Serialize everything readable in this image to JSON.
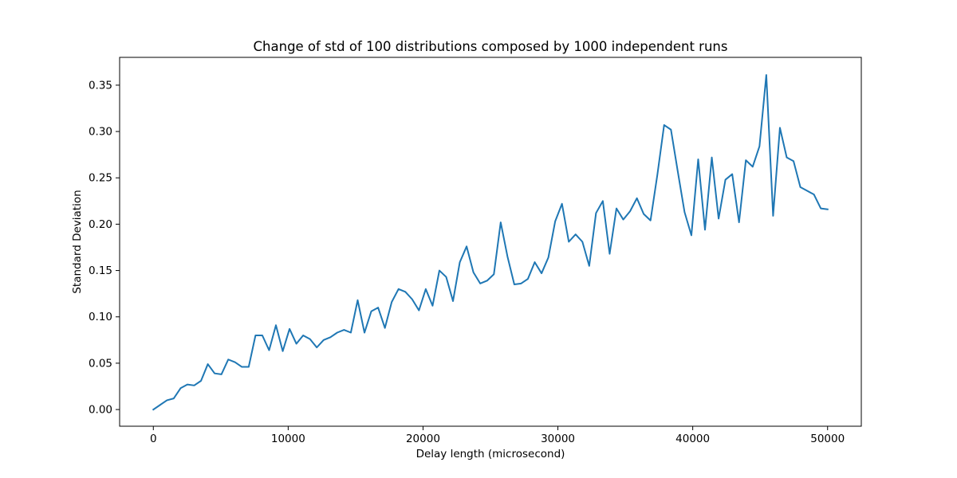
{
  "chart_data": {
    "type": "line",
    "title": "Change of std of 100 distributions composed by 1000 independent runs",
    "xlabel": "Delay length (microsecond)",
    "ylabel": "Standard Deviation",
    "xlim": [
      -2500,
      52500
    ],
    "ylim": [
      -0.018,
      0.38
    ],
    "xticks": [
      0,
      10000,
      20000,
      30000,
      40000,
      50000
    ],
    "xtick_labels": [
      "0",
      "10000",
      "20000",
      "30000",
      "40000",
      "50000"
    ],
    "yticks": [
      0.0,
      0.05,
      0.1,
      0.15,
      0.2,
      0.25,
      0.3,
      0.35
    ],
    "ytick_labels": [
      "0.00",
      "0.05",
      "0.10",
      "0.15",
      "0.20",
      "0.25",
      "0.30",
      "0.35"
    ],
    "grid": false,
    "legend": "none",
    "series": [
      {
        "color": "#1f77b4",
        "x": [
          0,
          505,
          1010,
          1515,
          2020,
          2525,
          3030,
          3535,
          4040,
          4545,
          5051,
          5556,
          6061,
          6566,
          7071,
          7576,
          8081,
          8586,
          9091,
          9596,
          10101,
          10606,
          11111,
          11616,
          12121,
          12626,
          13131,
          13636,
          14141,
          14646,
          15152,
          15657,
          16162,
          16667,
          17172,
          17677,
          18182,
          18687,
          19192,
          19697,
          20202,
          20707,
          21212,
          21717,
          22222,
          22727,
          23232,
          23737,
          24242,
          24747,
          25253,
          25758,
          26263,
          26768,
          27273,
          27778,
          28283,
          28788,
          29293,
          29798,
          30303,
          30808,
          31313,
          31818,
          32323,
          32828,
          33333,
          33838,
          34343,
          34848,
          35354,
          35859,
          36364,
          36869,
          37374,
          37879,
          38384,
          38889,
          39394,
          39899,
          40404,
          40909,
          41414,
          41919,
          42424,
          42929,
          43434,
          43939,
          44444,
          44949,
          45455,
          45960,
          46465,
          46970,
          47475,
          47980,
          48485,
          48990,
          49495,
          50000
        ],
        "y": [
          0.0,
          0.005,
          0.01,
          0.012,
          0.023,
          0.027,
          0.026,
          0.031,
          0.049,
          0.039,
          0.038,
          0.054,
          0.051,
          0.046,
          0.046,
          0.08,
          0.08,
          0.064,
          0.091,
          0.063,
          0.087,
          0.071,
          0.08,
          0.076,
          0.067,
          0.075,
          0.078,
          0.083,
          0.086,
          0.083,
          0.118,
          0.083,
          0.106,
          0.11,
          0.088,
          0.116,
          0.13,
          0.127,
          0.119,
          0.107,
          0.13,
          0.112,
          0.15,
          0.143,
          0.117,
          0.159,
          0.176,
          0.148,
          0.136,
          0.139,
          0.146,
          0.202,
          0.165,
          0.135,
          0.136,
          0.141,
          0.159,
          0.147,
          0.164,
          0.203,
          0.222,
          0.181,
          0.189,
          0.181,
          0.155,
          0.212,
          0.225,
          0.168,
          0.217,
          0.205,
          0.214,
          0.228,
          0.211,
          0.204,
          0.253,
          0.307,
          0.302,
          0.257,
          0.213,
          0.188,
          0.27,
          0.194,
          0.272,
          0.206,
          0.248,
          0.254,
          0.202,
          0.269,
          0.262,
          0.284,
          0.361,
          0.209,
          0.304,
          0.272,
          0.268,
          0.24,
          0.236,
          0.232,
          0.217,
          0.216
        ]
      }
    ]
  }
}
